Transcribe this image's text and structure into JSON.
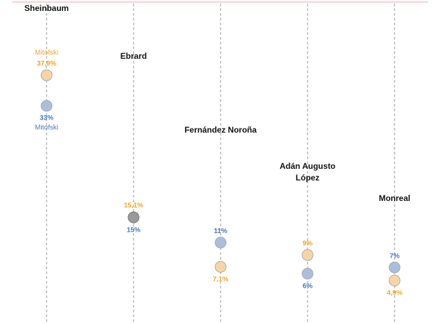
{
  "chart_data": {
    "type": "scatter",
    "title": "",
    "ylim": [
      0,
      50
    ],
    "colors": {
      "orange": "#f5a623",
      "blue": "#4a78b8",
      "orange_fill": "#f9d4a6",
      "blue_fill": "#a9bfdc",
      "overlap_fill": "#9a9a9a",
      "axis_line": "#f2a0a8"
    },
    "source_label": "Mitofski",
    "candidates": [
      {
        "name": "Sheinbaum",
        "orange": 37.9,
        "orange_label": "37,9%",
        "blue": 33,
        "blue_label": "33%"
      },
      {
        "name": "Ebrard",
        "orange": 15.1,
        "orange_label": "15,1%",
        "blue": 15,
        "blue_label": "15%"
      },
      {
        "name": "Fernández Noroña",
        "orange": 7.1,
        "orange_label": "7,1%",
        "blue": 11,
        "blue_label": "11%"
      },
      {
        "name": "Adán Augusto López",
        "name_lines": [
          "Adán Augusto",
          "López"
        ],
        "orange": 9,
        "orange_label": "9%",
        "blue": 6,
        "blue_label": "6%"
      },
      {
        "name": "Monreal",
        "orange": 4.9,
        "orange_label": "4,9%",
        "blue": 7,
        "blue_label": "7%"
      }
    ]
  }
}
